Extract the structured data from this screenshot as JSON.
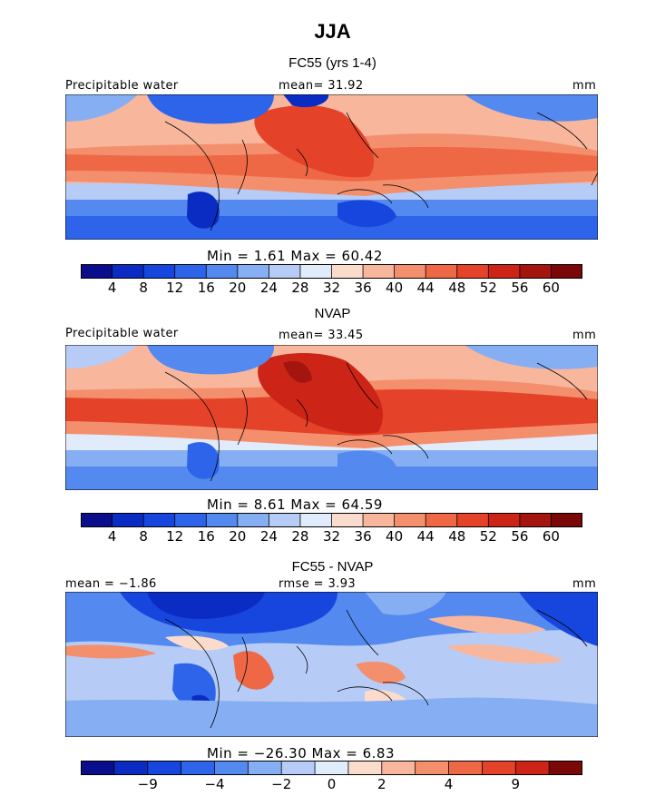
{
  "season": "JJA",
  "colors": {
    "full_scale": [
      "#0a0d8c",
      "#0b2cc2",
      "#1646dd",
      "#2e64ea",
      "#5489ef",
      "#86aef3",
      "#b6ccf7",
      "#e0ebfb",
      "#fbdccc",
      "#f8b79d",
      "#f48f6d",
      "#ee6846",
      "#e4432a",
      "#cc2517",
      "#a41510",
      "#7a0808"
    ],
    "diff_scale": [
      "#0a0d8c",
      "#0b2cc2",
      "#1646dd",
      "#2e64ea",
      "#5489ef",
      "#86aef3",
      "#b6ccf7",
      "#e0ebfb",
      "#fbdccc",
      "#f8b79d",
      "#f48f6d",
      "#ee6846",
      "#e4432a",
      "#cc2517",
      "#7a0808"
    ]
  },
  "chart_data": [
    {
      "type": "heatmap",
      "title": "FC55 (yrs 1-4)",
      "variable": "Precipitable water",
      "mean_text": "mean=  31.92",
      "units": "mm",
      "min_max_text": "Min =    1.61  Max =   60.42",
      "min": 1.61,
      "max": 60.42,
      "mean": 31.92,
      "colorbar_ticks": [
        "4",
        "8",
        "12",
        "16",
        "20",
        "24",
        "28",
        "32",
        "36",
        "40",
        "44",
        "48",
        "52",
        "56",
        "60"
      ],
      "colorbar_levels": 16
    },
    {
      "type": "heatmap",
      "title": "NVAP",
      "variable": "Precipitable water",
      "mean_text": "mean=  33.45",
      "units": "mm",
      "min_max_text": "Min =    8.61  Max =   64.59",
      "min": 8.61,
      "max": 64.59,
      "mean": 33.45,
      "colorbar_ticks": [
        "4",
        "8",
        "12",
        "16",
        "20",
        "24",
        "28",
        "32",
        "36",
        "40",
        "44",
        "48",
        "52",
        "56",
        "60"
      ],
      "colorbar_levels": 16
    },
    {
      "type": "heatmap",
      "title": "FC55 - NVAP",
      "mean_text": "mean =  −1.86",
      "rmse_text": "rmse =    3.93",
      "units": "mm",
      "min_max_text": "Min = −26.30  Max =    6.83",
      "min": -26.3,
      "max": 6.83,
      "mean": -1.86,
      "rmse": 3.93,
      "colorbar_ticks": [
        "−9",
        "−4",
        "−2",
        "0",
        "2",
        "4",
        "9"
      ],
      "colorbar_levels": 15
    }
  ]
}
